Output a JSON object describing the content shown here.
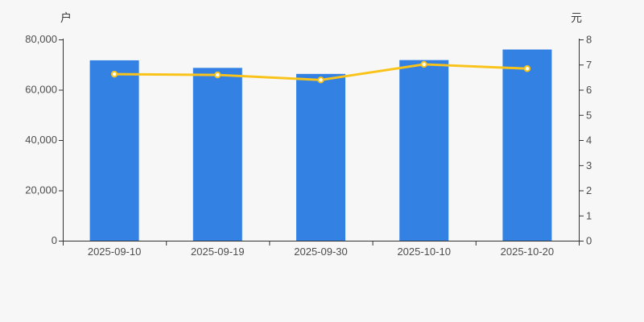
{
  "page": {
    "background_color": "#f7f7f7"
  },
  "chart_data": {
    "type": "bar",
    "combo": "bar+line dual axis",
    "categories": [
      "2025-09-10",
      "2025-09-19",
      "2025-09-30",
      "2025-10-10",
      "2025-10-20"
    ],
    "series": [
      {
        "type": "bar",
        "y_axis": "left",
        "values": [
          71700,
          68700,
          66300,
          71800,
          76000
        ],
        "color": "#3381e3"
      },
      {
        "type": "line",
        "y_axis": "right",
        "values": [
          6.62,
          6.59,
          6.39,
          7.01,
          6.84
        ],
        "color": "#f9c31a",
        "marker": "circle",
        "marker_fill": "#ffffff"
      }
    ],
    "left_axis": {
      "unit_label": "户",
      "min": 0,
      "max": 80000,
      "tick_interval": 20000,
      "ticklabels": [
        "0",
        "20,000",
        "40,000",
        "60,000",
        "80,000"
      ]
    },
    "right_axis": {
      "unit_label": "元",
      "min": 0,
      "max": 8,
      "tick_interval": 1,
      "ticklabels": [
        "0",
        "1",
        "2",
        "3",
        "4",
        "5",
        "6",
        "7",
        "8"
      ]
    },
    "grid": false,
    "legend": false,
    "colors": {
      "axis": "#333333",
      "text": "#4d4d4d",
      "background": "#f7f7f7"
    }
  }
}
